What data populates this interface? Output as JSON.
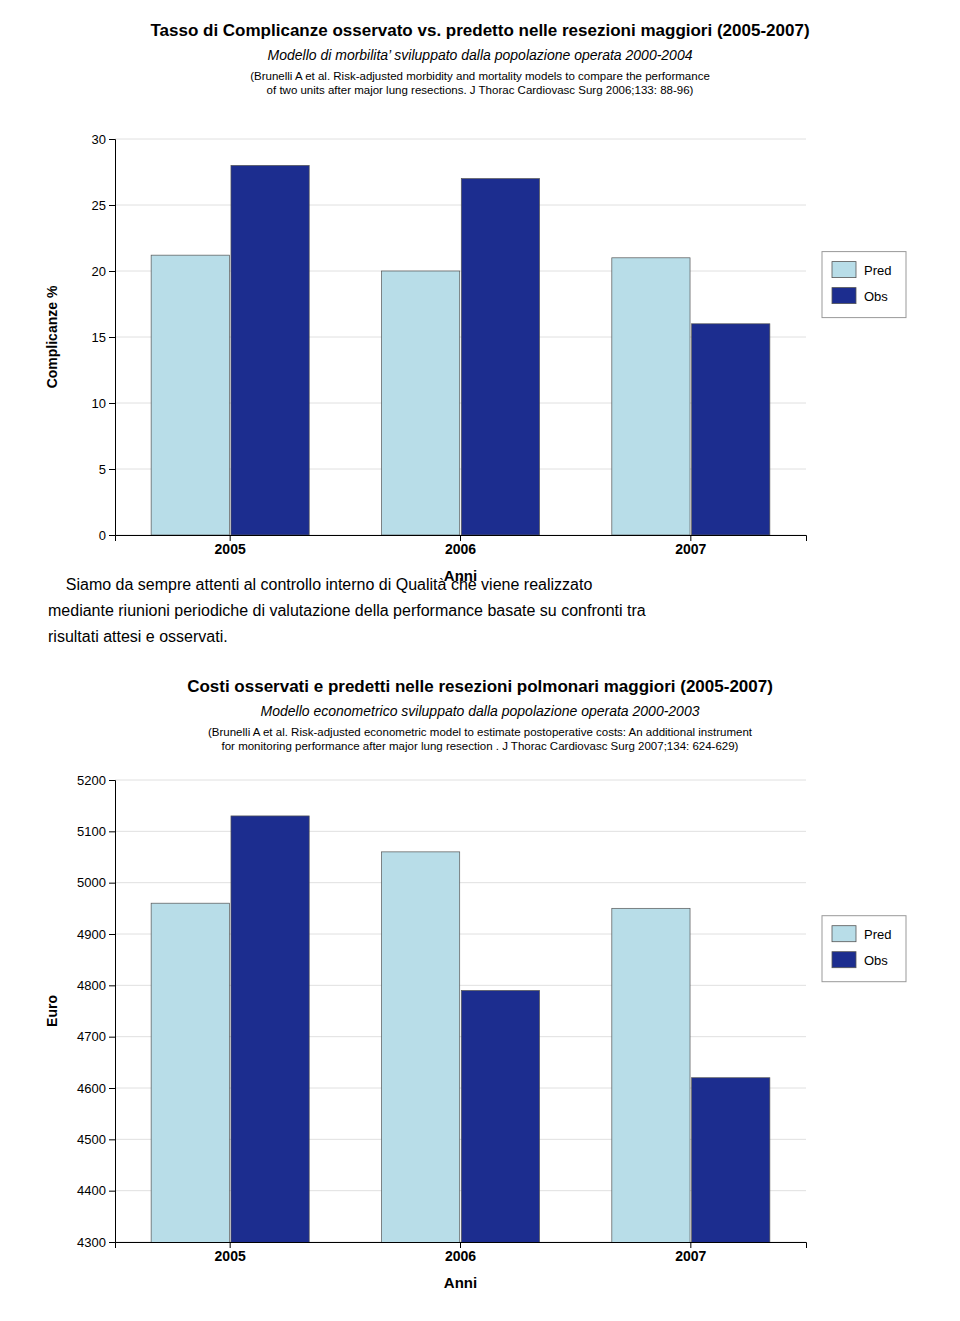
{
  "chart_data": [
    {
      "type": "bar",
      "title": "Tasso di Complicanze osservato vs. predetto nelle resezioni maggiori (2005-2007)",
      "subtitle": [
        "Modello di morbilita’ sviluppato dalla popolazione operata 2000-2004",
        "(Brunelli A et al. Risk-adjusted morbidity and mortality models to compare the performance\nof two units after major lung resections. J Thorac Cardiovasc Surg 2006;133: 88-96)"
      ],
      "categories": [
        "2005",
        "2006",
        "2007"
      ],
      "series": [
        {
          "name": "Pred",
          "color": "#b8dde8",
          "values": [
            21.2,
            20.0,
            21.0
          ]
        },
        {
          "name": "Obs",
          "color": "#1c2d8f",
          "values": [
            28.0,
            27.0,
            16.0
          ]
        }
      ],
      "xlabel": "Anni",
      "ylabel": "Complicanze %",
      "ylim": [
        0,
        30
      ],
      "yticks": [
        0,
        5,
        10,
        15,
        20,
        25,
        30
      ],
      "grid": true,
      "legend": "right"
    },
    {
      "type": "bar",
      "title": "Costi osservati e predetti nelle resezioni polmonari maggiori (2005-2007)",
      "subtitle": [
        "Modello econometrico sviluppato dalla popolazione operata 2000-2003",
        "(Brunelli A et al. Risk-adjusted econometric model to estimate postoperative costs: An additional instrument\nfor monitoring performance after major lung resection . J Thorac Cardiovasc Surg 2007;134: 624-629)"
      ],
      "categories": [
        "2005",
        "2006",
        "2007"
      ],
      "series": [
        {
          "name": "Pred",
          "color": "#b8dde8",
          "values": [
            4960,
            5060,
            4950
          ]
        },
        {
          "name": "Obs",
          "color": "#1c2d8f",
          "values": [
            5130,
            4790,
            4620
          ]
        }
      ],
      "xlabel": "Anni",
      "ylabel": "Euro",
      "ylim": [
        4300,
        5200
      ],
      "yticks": [
        4300,
        4400,
        4500,
        4600,
        4700,
        4800,
        4900,
        5000,
        5100,
        5200
      ],
      "grid": true,
      "legend": "right"
    }
  ],
  "annotations": [
    "    Siamo da sempre attenti al controllo interno di Qualità che viene realizzato",
    "mediante riunioni periodiche di valutazione della performance basate su confronti tra",
    "risultati attesi e osservati."
  ]
}
